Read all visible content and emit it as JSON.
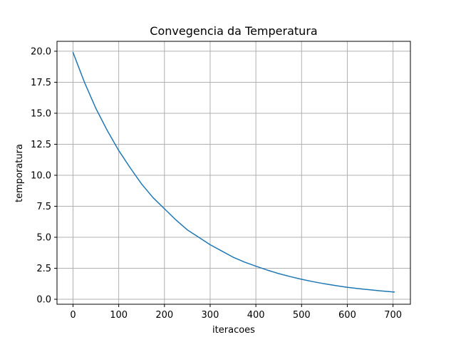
{
  "chart_data": {
    "type": "line",
    "title": "Convegencia da Temperatura",
    "xlabel": "iteracoes",
    "ylabel": "temporatura",
    "xlim": [
      -35,
      738
    ],
    "ylim": [
      -0.4,
      20.8
    ],
    "xticks": [
      0,
      100,
      200,
      300,
      400,
      500,
      600,
      700
    ],
    "yticks": [
      0.0,
      2.5,
      5.0,
      7.5,
      10.0,
      12.5,
      15.0,
      17.5,
      20.0
    ],
    "ytick_labels": [
      "0.0",
      "2.5",
      "5.0",
      "7.5",
      "10.0",
      "12.5",
      "15.0",
      "17.5",
      "20.0"
    ],
    "grid": true,
    "line_color": "#1f77b4",
    "grid_color": "#b0b0b0",
    "series": [
      {
        "x": [
          0,
          25,
          50,
          75,
          100,
          125,
          150,
          175,
          200,
          225,
          250,
          275,
          300,
          325,
          350,
          375,
          400,
          425,
          450,
          475,
          500,
          525,
          550,
          575,
          600,
          625,
          650,
          675,
          703
        ],
        "y": [
          19.9,
          17.5,
          15.4,
          13.6,
          12.0,
          10.6,
          9.3,
          8.2,
          7.3,
          6.4,
          5.6,
          5.0,
          4.4,
          3.9,
          3.4,
          3.0,
          2.67,
          2.35,
          2.07,
          1.83,
          1.61,
          1.42,
          1.25,
          1.1,
          0.97,
          0.86,
          0.76,
          0.67,
          0.58
        ]
      }
    ]
  }
}
